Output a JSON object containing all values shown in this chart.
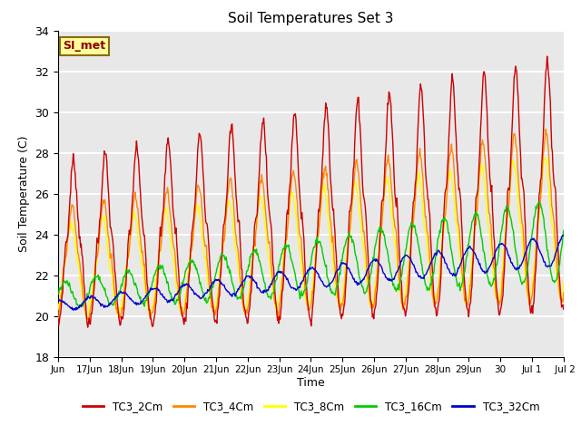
{
  "title": "Soil Temperatures Set 3",
  "xlabel": "Time",
  "ylabel": "Soil Temperature (C)",
  "ylim": [
    18,
    34
  ],
  "background_color": "#e8e8e8",
  "grid_color": "white",
  "series_colors": {
    "TC3_2Cm": "#cc0000",
    "TC3_4Cm": "#ff8800",
    "TC3_8Cm": "#ffff00",
    "TC3_16Cm": "#00cc00",
    "TC3_32Cm": "#0000cc"
  },
  "tick_labels": [
    "Jun",
    "17Jun",
    "18Jun",
    "19Jun",
    "20Jun",
    "21Jun",
    "22Jun",
    "23Jun",
    "24Jun",
    "25Jun",
    "26Jun",
    "27Jun",
    "28Jun",
    "29Jun",
    "30",
    "Jul 1",
    " Jul 2"
  ],
  "annotation_text": "SI_met",
  "annotation_color": "#8b0000",
  "annotation_bg": "#ffff99",
  "annotation_border": "#8b6914",
  "legend_labels": [
    "TC3_2Cm",
    "TC3_4Cm",
    "TC3_8Cm",
    "TC3_16Cm",
    "TC3_32Cm"
  ]
}
